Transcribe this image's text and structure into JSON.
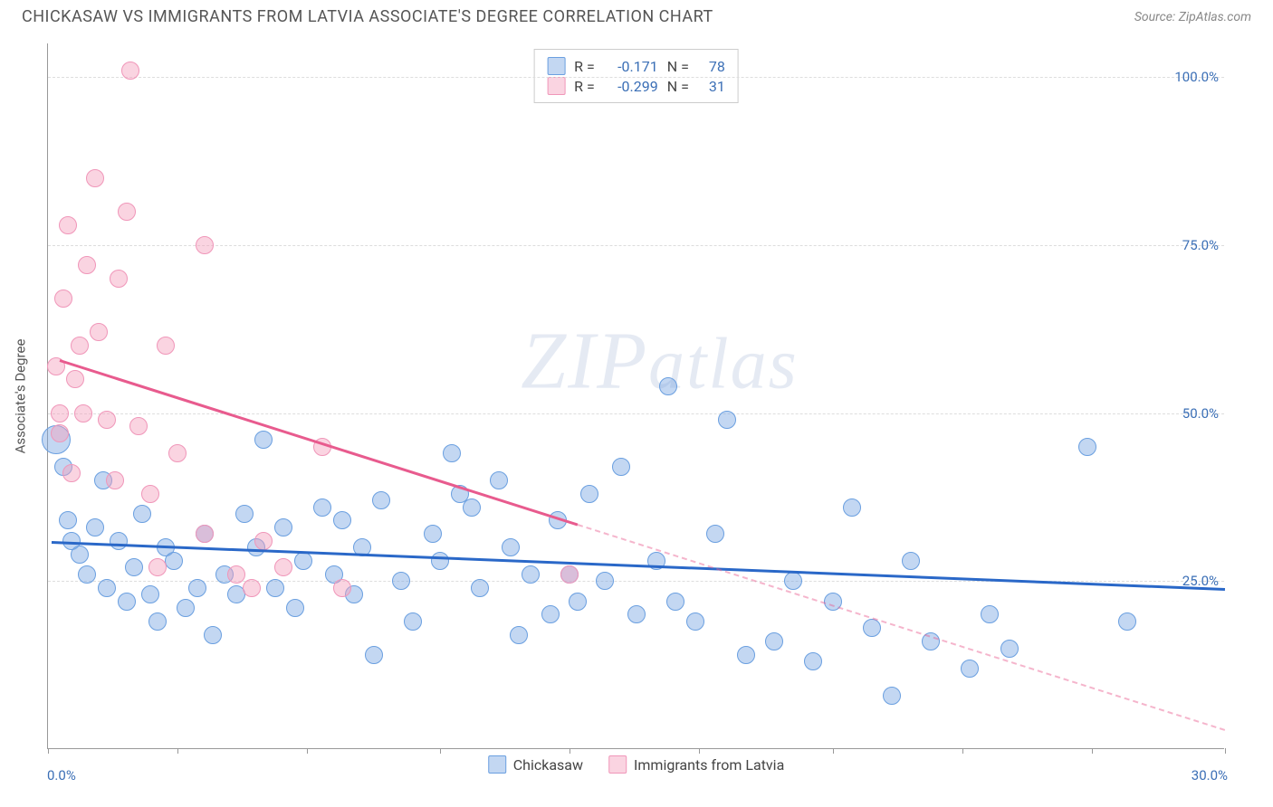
{
  "header": {
    "title": "CHICKASAW VS IMMIGRANTS FROM LATVIA ASSOCIATE'S DEGREE CORRELATION CHART",
    "source_prefix": "Source: ",
    "source_name": "ZipAtlas.com"
  },
  "axes": {
    "ylabel": "Associate's Degree",
    "xlim": [
      0,
      30
    ],
    "ylim": [
      0,
      105
    ],
    "x_left_label": "0.0%",
    "x_right_label": "30.0%",
    "yticks": [
      25,
      50,
      75,
      100
    ],
    "ytick_labels": [
      "25.0%",
      "50.0%",
      "75.0%",
      "100.0%"
    ],
    "xtick_positions": [
      0,
      3.3,
      6.6,
      10,
      13.3,
      16.6,
      20,
      23.3,
      26.6,
      30
    ]
  },
  "colors": {
    "series_a_fill": "rgba(121,167,227,0.45)",
    "series_a_stroke": "#6a9fe0",
    "series_b_fill": "rgba(244,160,188,0.45)",
    "series_b_stroke": "#f096b9",
    "trend_a": "#2a68c8",
    "trend_b": "#e85b8e",
    "trend_b_dash": "rgba(232,91,142,0.45)",
    "axis_label": "#3b6fb6",
    "grid": "#dddddd"
  },
  "marker_radius": 10,
  "marker_radius_large": 16,
  "series": [
    {
      "id": "a",
      "legend": "Chickasaw",
      "stats": {
        "R": "-0.171",
        "N": "78"
      },
      "trend": {
        "x1": 0.1,
        "y1": 31,
        "x2": 30,
        "y2": 24,
        "dash_from_x": null
      },
      "points": [
        [
          0.2,
          46,
          16
        ],
        [
          0.4,
          42,
          10
        ],
        [
          0.5,
          34,
          10
        ],
        [
          0.6,
          31,
          10
        ],
        [
          0.8,
          29,
          10
        ],
        [
          1.0,
          26,
          10
        ],
        [
          1.2,
          33,
          10
        ],
        [
          1.4,
          40,
          10
        ],
        [
          1.5,
          24,
          10
        ],
        [
          1.8,
          31,
          10
        ],
        [
          2.0,
          22,
          10
        ],
        [
          2.2,
          27,
          10
        ],
        [
          2.4,
          35,
          10
        ],
        [
          2.6,
          23,
          10
        ],
        [
          2.8,
          19,
          10
        ],
        [
          3.0,
          30,
          10
        ],
        [
          3.2,
          28,
          10
        ],
        [
          3.5,
          21,
          10
        ],
        [
          3.8,
          24,
          10
        ],
        [
          4.0,
          32,
          10
        ],
        [
          4.2,
          17,
          10
        ],
        [
          4.5,
          26,
          10
        ],
        [
          4.8,
          23,
          10
        ],
        [
          5.0,
          35,
          10
        ],
        [
          5.3,
          30,
          10
        ],
        [
          5.5,
          46,
          10
        ],
        [
          5.8,
          24,
          10
        ],
        [
          6.0,
          33,
          10
        ],
        [
          6.3,
          21,
          10
        ],
        [
          6.5,
          28,
          10
        ],
        [
          7.0,
          36,
          10
        ],
        [
          7.3,
          26,
          10
        ],
        [
          7.5,
          34,
          10
        ],
        [
          7.8,
          23,
          10
        ],
        [
          8.0,
          30,
          10
        ],
        [
          8.3,
          14,
          10
        ],
        [
          8.5,
          37,
          10
        ],
        [
          9.0,
          25,
          10
        ],
        [
          9.3,
          19,
          10
        ],
        [
          9.8,
          32,
          10
        ],
        [
          10.0,
          28,
          10
        ],
        [
          10.3,
          44,
          10
        ],
        [
          10.5,
          38,
          10
        ],
        [
          10.8,
          36,
          10
        ],
        [
          11.0,
          24,
          10
        ],
        [
          11.5,
          40,
          10
        ],
        [
          11.8,
          30,
          10
        ],
        [
          12.0,
          17,
          10
        ],
        [
          12.3,
          26,
          10
        ],
        [
          12.8,
          20,
          10
        ],
        [
          13.0,
          34,
          10
        ],
        [
          13.3,
          26,
          10
        ],
        [
          13.5,
          22,
          10
        ],
        [
          13.8,
          38,
          10
        ],
        [
          14.2,
          25,
          10
        ],
        [
          14.6,
          42,
          10
        ],
        [
          15.0,
          20,
          10
        ],
        [
          15.5,
          28,
          10
        ],
        [
          15.8,
          54,
          10
        ],
        [
          16.0,
          22,
          10
        ],
        [
          16.5,
          19,
          10
        ],
        [
          17.0,
          32,
          10
        ],
        [
          17.3,
          49,
          10
        ],
        [
          17.8,
          14,
          10
        ],
        [
          18.5,
          16,
          10
        ],
        [
          19.0,
          25,
          10
        ],
        [
          19.5,
          13,
          10
        ],
        [
          20.0,
          22,
          10
        ],
        [
          20.5,
          36,
          10
        ],
        [
          21.0,
          18,
          10
        ],
        [
          21.5,
          8,
          10
        ],
        [
          22.0,
          28,
          10
        ],
        [
          22.5,
          16,
          10
        ],
        [
          23.5,
          12,
          10
        ],
        [
          24.0,
          20,
          10
        ],
        [
          24.5,
          15,
          10
        ],
        [
          26.5,
          45,
          10
        ],
        [
          27.5,
          19,
          10
        ]
      ]
    },
    {
      "id": "b",
      "legend": "Immigrants from Latvia",
      "stats": {
        "R": "-0.299",
        "N": "31"
      },
      "trend": {
        "x1": 0.3,
        "y1": 58,
        "x2": 30,
        "y2": 3,
        "dash_from_x": 13.5
      },
      "points": [
        [
          0.2,
          57,
          10
        ],
        [
          0.3,
          50,
          10
        ],
        [
          0.3,
          47,
          10
        ],
        [
          0.4,
          67,
          10
        ],
        [
          0.5,
          78,
          10
        ],
        [
          0.6,
          41,
          10
        ],
        [
          0.7,
          55,
          10
        ],
        [
          0.8,
          60,
          10
        ],
        [
          0.9,
          50,
          10
        ],
        [
          1.0,
          72,
          10
        ],
        [
          1.2,
          85,
          10
        ],
        [
          1.3,
          62,
          10
        ],
        [
          1.5,
          49,
          10
        ],
        [
          1.7,
          40,
          10
        ],
        [
          1.8,
          70,
          10
        ],
        [
          2.0,
          80,
          10
        ],
        [
          2.1,
          101,
          10
        ],
        [
          2.3,
          48,
          10
        ],
        [
          2.6,
          38,
          10
        ],
        [
          2.8,
          27,
          10
        ],
        [
          3.0,
          60,
          10
        ],
        [
          3.3,
          44,
          10
        ],
        [
          4.0,
          75,
          10
        ],
        [
          4.0,
          32,
          10
        ],
        [
          4.8,
          26,
          10
        ],
        [
          5.2,
          24,
          10
        ],
        [
          5.5,
          31,
          10
        ],
        [
          6.0,
          27,
          10
        ],
        [
          7.0,
          45,
          10
        ],
        [
          7.5,
          24,
          10
        ],
        [
          13.3,
          26,
          10
        ]
      ]
    }
  ],
  "watermark": {
    "text_big": "ZIP",
    "text_small": "atlas"
  }
}
